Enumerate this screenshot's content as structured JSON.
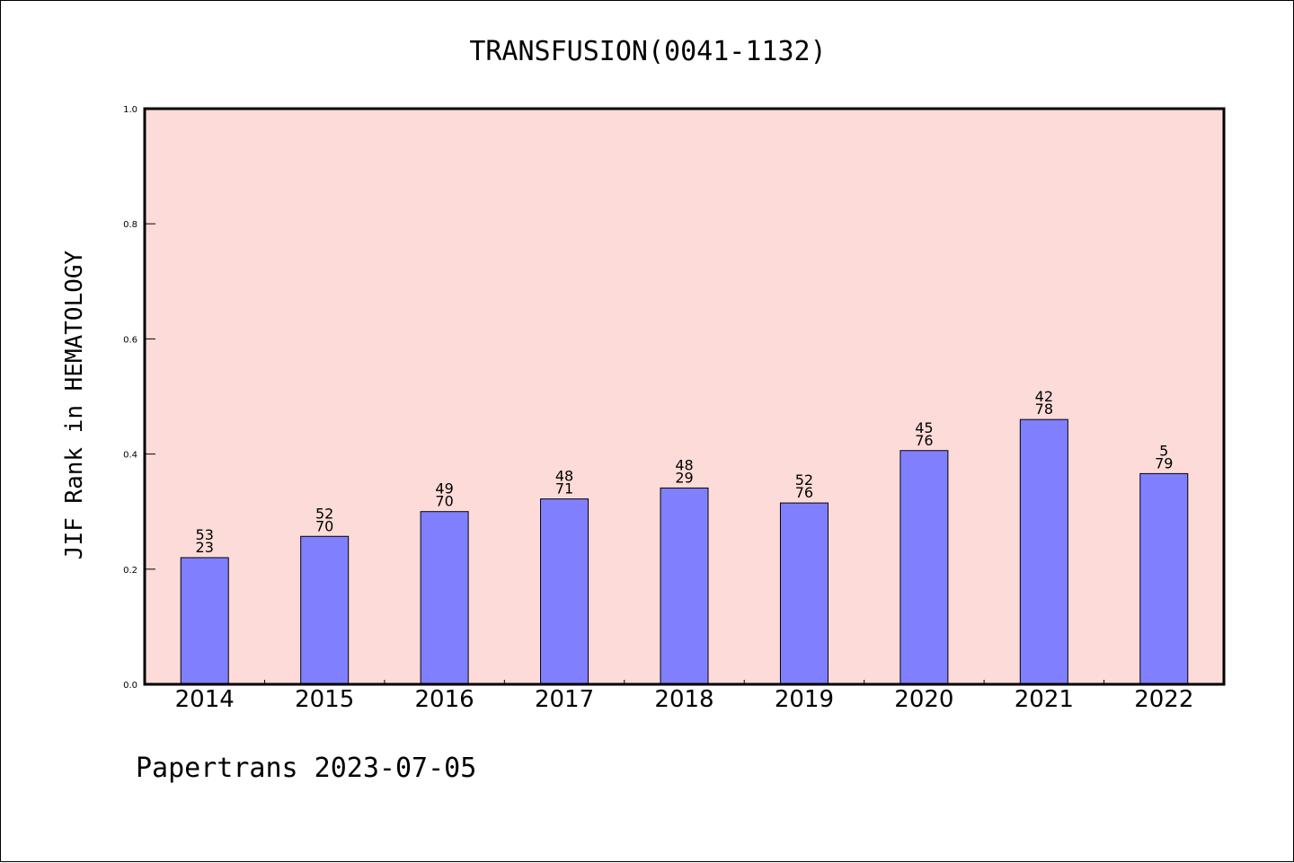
{
  "chart_data": {
    "type": "bar",
    "title": "TRANSFUSION(0041-1132)",
    "xlabel": "",
    "ylabel": "JIF Rank in HEMATOLOGY",
    "categories": [
      "2014",
      "2015",
      "2016",
      "2017",
      "2018",
      "2019",
      "2020",
      "2021",
      "2022"
    ],
    "values": [
      0.22,
      0.257,
      0.3,
      0.322,
      0.341,
      0.315,
      0.406,
      0.46,
      0.366
    ],
    "label_top": [
      "53",
      "52",
      "49",
      "48",
      "48",
      "52",
      "45",
      "42",
      "5"
    ],
    "label_bottom": [
      "23",
      "70",
      "70",
      "71",
      "29",
      "76",
      "76",
      "78",
      "79"
    ],
    "ylim": [
      0,
      1.0
    ],
    "yticks": [
      "0.0",
      "0.2",
      "0.4",
      "0.6",
      "0.8",
      "1.0"
    ],
    "grid": false,
    "colors": {
      "plot_background": "#fddbd8",
      "bar": "#8080ff"
    }
  },
  "footer": {
    "text": "Papertrans 2023-07-05"
  }
}
